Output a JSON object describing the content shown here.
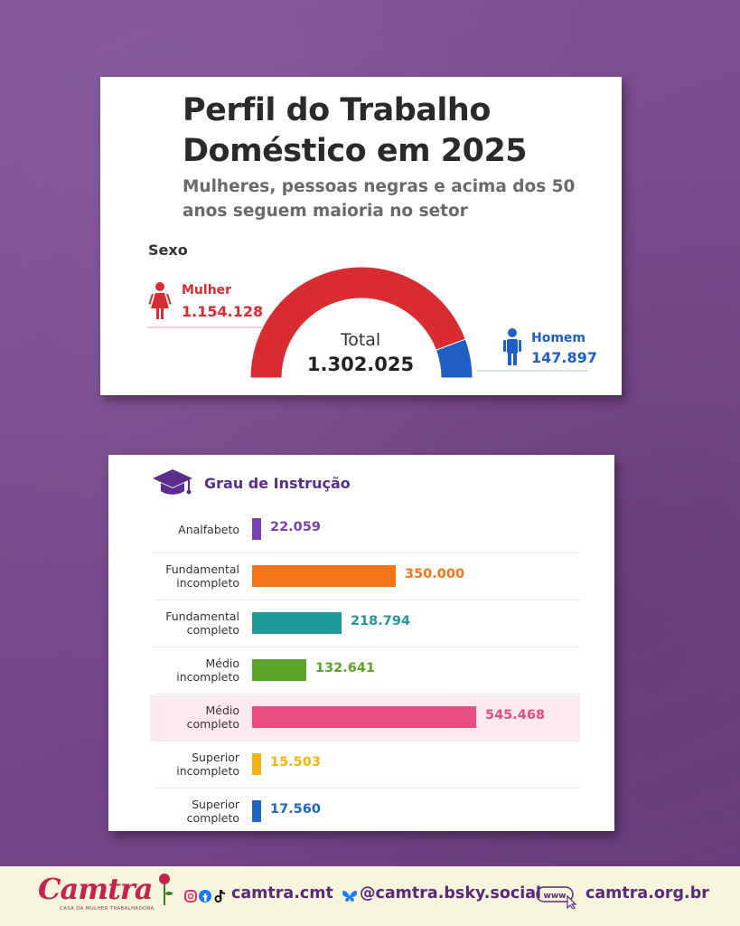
{
  "header": {
    "title": "Perfil do Trabalho Doméstico em 2025",
    "subtitle": "Mulheres, pessoas negras e acima dos 50 anos seguem maioria no setor"
  },
  "sexo": {
    "label": "Sexo",
    "mulher_label": "Mulher",
    "mulher_value": "1.154.128",
    "homem_label": "Homem",
    "homem_value": "147.897",
    "total_label": "Total",
    "total_value": "1.302.025"
  },
  "instrucao": {
    "title": "Grau de Instrução",
    "value_labels": [
      "22.059",
      "350.000",
      "218.794",
      "132.641",
      "545.468",
      "15.503",
      "17.560"
    ]
  },
  "footer": {
    "brand": "Camtra",
    "brand_sub": "CASA DA MULHER TRABALHADORA",
    "social": "camtra.cmt",
    "bluesky": "@camtra.bsky.social",
    "www": "www",
    "website": "camtra.org.br"
  },
  "colors": {
    "mulher": "#d92b32",
    "homem": "#1f5fc4",
    "accent": "#5b2d8e"
  },
  "chart_data": [
    {
      "type": "pie",
      "title": "Sexo",
      "categories": [
        "Mulher",
        "Homem"
      ],
      "values": [
        1154128,
        147897
      ],
      "total": 1302025,
      "colors": [
        "#d92b32",
        "#1f5fc4"
      ]
    },
    {
      "type": "bar",
      "title": "Grau de Instrução",
      "categories": [
        "Analfabeto",
        "Fundamental incompleto",
        "Fundamental completo",
        "Médio incompleto",
        "Médio completo",
        "Superior incompleto",
        "Superior completo"
      ],
      "category_lines": [
        [
          "Analfabeto"
        ],
        [
          "Fundamental",
          "incompleto"
        ],
        [
          "Fundamental",
          "completo"
        ],
        [
          "Médio",
          "incompleto"
        ],
        [
          "Médio",
          "completo"
        ],
        [
          "Superior",
          "incompleto"
        ],
        [
          "Superior",
          "completo"
        ]
      ],
      "values": [
        22059,
        350000,
        218794,
        132641,
        545468,
        15503,
        17560
      ],
      "colors": [
        "#7b3fb5",
        "#f57418",
        "#1f9a9a",
        "#5aa42a",
        "#ea4d80",
        "#f4b413",
        "#1f64c8"
      ],
      "highlight": "Médio completo"
    }
  ]
}
